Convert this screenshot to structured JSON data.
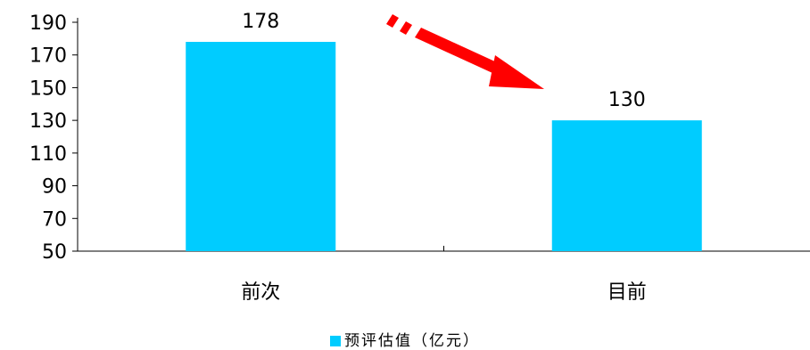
{
  "chart_data": {
    "type": "bar",
    "categories": [
      "前次",
      "目前"
    ],
    "series": [
      {
        "name": "预评估值（亿元）",
        "values": [
          178,
          130
        ]
      }
    ],
    "data_labels": [
      "178",
      "130"
    ],
    "y_ticks": [
      50,
      70,
      90,
      110,
      130,
      150,
      170,
      190
    ],
    "ylim": [
      50,
      190
    ],
    "grid": false,
    "legend_position": "bottom",
    "bar_color": "#00CCFF",
    "annotation": {
      "type": "arrow",
      "direction": "down-right",
      "color": "#FF0000"
    }
  }
}
